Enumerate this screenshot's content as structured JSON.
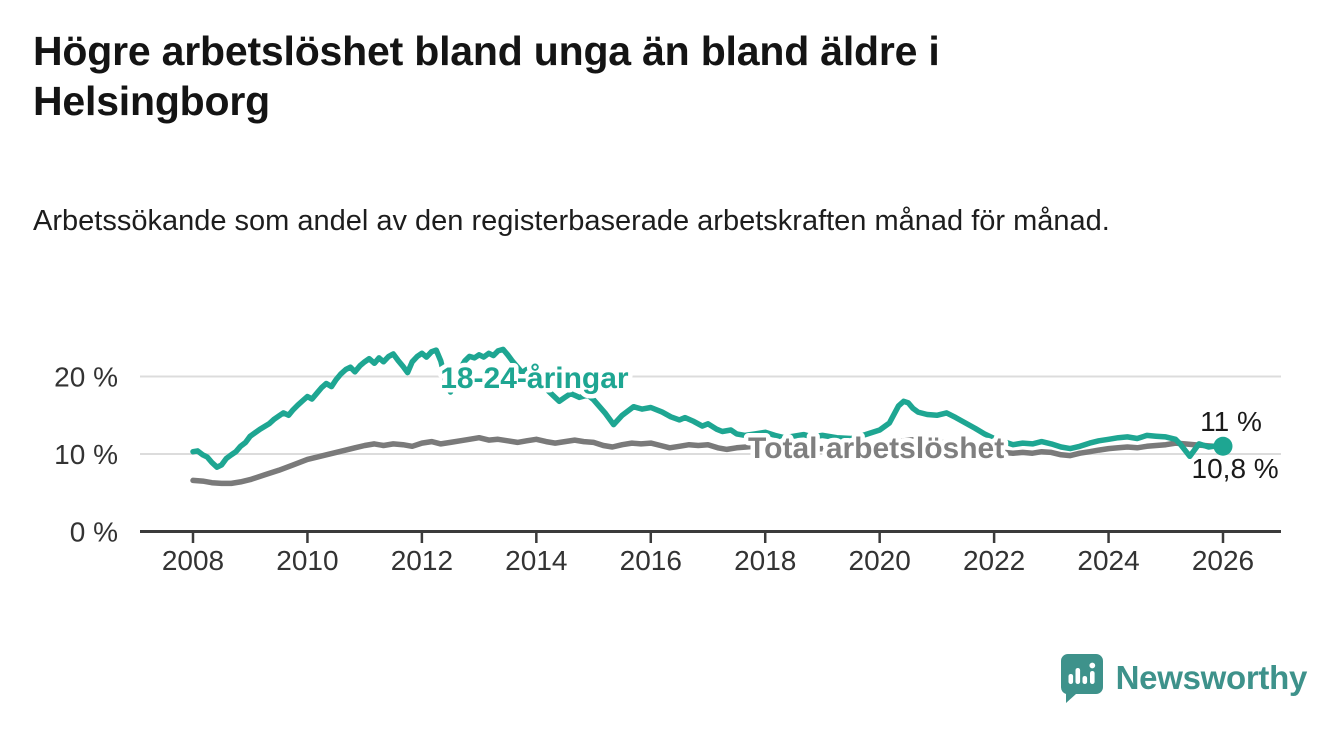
{
  "page": {
    "background": "#ffffff"
  },
  "header": {
    "title": "Högre arbetslöshet bland unga än bland äldre i Helsingborg",
    "subtitle": "Arbetssökande som andel av den registerbaserade arbetskraften månad för månad."
  },
  "branding": {
    "name": "Newsworthy",
    "color": "#3E928B",
    "icon": "newsworthy-speech-bubble-bar-chart-icon"
  },
  "chart_data": {
    "type": "line",
    "title": "Högre arbetslöshet bland unga än bland äldre i Helsingborg",
    "subtitle": "Arbetssökande som andel av den registerbaserade arbetskraften månad för månad.",
    "xlabel": "",
    "ylabel": "",
    "x_axis": {
      "ticks": [
        2008,
        2010,
        2012,
        2014,
        2016,
        2018,
        2020,
        2022,
        2024,
        2026
      ],
      "range": [
        2007.08,
        2027.0
      ],
      "color": "#3b3b3b",
      "label_color": "#333333"
    },
    "y_axis": {
      "ticks": [
        {
          "value": 0,
          "label": "0 %"
        },
        {
          "value": 10,
          "label": "10 %"
        },
        {
          "value": 20,
          "label": "20 %"
        }
      ],
      "range": [
        0,
        24.8
      ],
      "grid": true,
      "grid_color": "#dcdcdc",
      "label_color": "#333333"
    },
    "legend_position": "inline-labels",
    "series": [
      {
        "name": "Total arbetslöshet",
        "color": "#7A7A7A",
        "label_color": "#7F7F7F",
        "label_pos": {
          "year": 2017.7,
          "pct": 9.48
        },
        "end_dot": false,
        "points": [
          [
            2008.0,
            6.6
          ],
          [
            2008.17,
            6.5
          ],
          [
            2008.33,
            6.3
          ],
          [
            2008.5,
            6.2
          ],
          [
            2008.67,
            6.2
          ],
          [
            2008.83,
            6.4
          ],
          [
            2009.0,
            6.7
          ],
          [
            2009.25,
            7.3
          ],
          [
            2009.5,
            7.9
          ],
          [
            2009.75,
            8.6
          ],
          [
            2010.0,
            9.3
          ],
          [
            2010.17,
            9.6
          ],
          [
            2010.33,
            9.9
          ],
          [
            2010.5,
            10.2
          ],
          [
            2010.67,
            10.5
          ],
          [
            2010.83,
            10.8
          ],
          [
            2011.0,
            11.1
          ],
          [
            2011.17,
            11.3
          ],
          [
            2011.33,
            11.1
          ],
          [
            2011.5,
            11.3
          ],
          [
            2011.67,
            11.2
          ],
          [
            2011.83,
            11.0
          ],
          [
            2012.0,
            11.4
          ],
          [
            2012.17,
            11.6
          ],
          [
            2012.33,
            11.3
          ],
          [
            2012.5,
            11.5
          ],
          [
            2012.67,
            11.7
          ],
          [
            2012.83,
            11.9
          ],
          [
            2013.0,
            12.1
          ],
          [
            2013.17,
            11.8
          ],
          [
            2013.33,
            11.9
          ],
          [
            2013.5,
            11.7
          ],
          [
            2013.67,
            11.5
          ],
          [
            2013.83,
            11.7
          ],
          [
            2014.0,
            11.9
          ],
          [
            2014.17,
            11.6
          ],
          [
            2014.33,
            11.4
          ],
          [
            2014.5,
            11.6
          ],
          [
            2014.67,
            11.8
          ],
          [
            2014.83,
            11.6
          ],
          [
            2015.0,
            11.5
          ],
          [
            2015.17,
            11.1
          ],
          [
            2015.33,
            10.9
          ],
          [
            2015.5,
            11.2
          ],
          [
            2015.67,
            11.4
          ],
          [
            2015.83,
            11.3
          ],
          [
            2016.0,
            11.4
          ],
          [
            2016.17,
            11.1
          ],
          [
            2016.33,
            10.8
          ],
          [
            2016.5,
            11.0
          ],
          [
            2016.67,
            11.2
          ],
          [
            2016.83,
            11.1
          ],
          [
            2017.0,
            11.2
          ],
          [
            2017.17,
            10.8
          ],
          [
            2017.33,
            10.6
          ],
          [
            2017.5,
            10.8
          ],
          [
            2017.67,
            10.9
          ],
          [
            2017.83,
            11.0
          ],
          [
            2018.0,
            11.1
          ],
          [
            2018.25,
            10.7
          ],
          [
            2018.5,
            10.5
          ],
          [
            2018.75,
            10.6
          ],
          [
            2019.0,
            10.7
          ],
          [
            2019.25,
            10.4
          ],
          [
            2019.5,
            10.3
          ],
          [
            2019.75,
            10.5
          ],
          [
            2020.0,
            10.8
          ],
          [
            2020.25,
            11.4
          ],
          [
            2020.5,
            11.8
          ],
          [
            2020.75,
            11.9
          ],
          [
            2021.0,
            11.6
          ],
          [
            2021.25,
            11.3
          ],
          [
            2021.5,
            11.0
          ],
          [
            2021.75,
            10.7
          ],
          [
            2022.0,
            10.4
          ],
          [
            2022.17,
            10.2
          ],
          [
            2022.33,
            10.1
          ],
          [
            2022.5,
            10.2
          ],
          [
            2022.67,
            10.1
          ],
          [
            2022.83,
            10.3
          ],
          [
            2023.0,
            10.2
          ],
          [
            2023.17,
            9.9
          ],
          [
            2023.33,
            9.8
          ],
          [
            2023.5,
            10.1
          ],
          [
            2023.67,
            10.3
          ],
          [
            2023.83,
            10.5
          ],
          [
            2024.0,
            10.7
          ],
          [
            2024.17,
            10.8
          ],
          [
            2024.33,
            10.9
          ],
          [
            2024.5,
            10.8
          ],
          [
            2024.67,
            11.0
          ],
          [
            2024.83,
            11.1
          ],
          [
            2025.0,
            11.2
          ],
          [
            2025.17,
            11.4
          ],
          [
            2025.33,
            11.3
          ],
          [
            2025.5,
            11.2
          ],
          [
            2025.67,
            11.1
          ],
          [
            2025.83,
            11.0
          ],
          [
            2026.0,
            10.8
          ]
        ]
      },
      {
        "name": "18-24-åringar",
        "color": "#1EA692",
        "label_color": "#1EA692",
        "label_pos": {
          "year": 2012.32,
          "pct": 18.5
        },
        "end_dot": true,
        "points": [
          [
            2008.0,
            10.3
          ],
          [
            2008.08,
            10.4
          ],
          [
            2008.17,
            9.9
          ],
          [
            2008.25,
            9.6
          ],
          [
            2008.33,
            8.9
          ],
          [
            2008.42,
            8.3
          ],
          [
            2008.5,
            8.6
          ],
          [
            2008.58,
            9.4
          ],
          [
            2008.67,
            9.9
          ],
          [
            2008.75,
            10.3
          ],
          [
            2008.83,
            11.0
          ],
          [
            2008.92,
            11.5
          ],
          [
            2009.0,
            12.3
          ],
          [
            2009.17,
            13.2
          ],
          [
            2009.33,
            13.9
          ],
          [
            2009.42,
            14.5
          ],
          [
            2009.5,
            14.9
          ],
          [
            2009.58,
            15.3
          ],
          [
            2009.67,
            15.0
          ],
          [
            2009.75,
            15.7
          ],
          [
            2009.83,
            16.3
          ],
          [
            2009.92,
            16.9
          ],
          [
            2010.0,
            17.4
          ],
          [
            2010.08,
            17.1
          ],
          [
            2010.17,
            17.9
          ],
          [
            2010.25,
            18.6
          ],
          [
            2010.33,
            19.1
          ],
          [
            2010.42,
            18.7
          ],
          [
            2010.5,
            19.6
          ],
          [
            2010.58,
            20.3
          ],
          [
            2010.67,
            20.9
          ],
          [
            2010.75,
            21.2
          ],
          [
            2010.83,
            20.6
          ],
          [
            2010.92,
            21.4
          ],
          [
            2011.0,
            21.9
          ],
          [
            2011.08,
            22.3
          ],
          [
            2011.17,
            21.7
          ],
          [
            2011.25,
            22.4
          ],
          [
            2011.33,
            21.9
          ],
          [
            2011.42,
            22.6
          ],
          [
            2011.5,
            22.9
          ],
          [
            2011.58,
            22.1
          ],
          [
            2011.67,
            21.3
          ],
          [
            2011.75,
            20.5
          ],
          [
            2011.83,
            21.9
          ],
          [
            2011.92,
            22.6
          ],
          [
            2012.0,
            23.0
          ],
          [
            2012.08,
            22.5
          ],
          [
            2012.17,
            23.2
          ],
          [
            2012.25,
            23.4
          ],
          [
            2012.33,
            22.0
          ],
          [
            2012.42,
            19.3
          ],
          [
            2012.5,
            18.0
          ],
          [
            2012.58,
            19.5
          ],
          [
            2012.67,
            21.0
          ],
          [
            2012.75,
            22.0
          ],
          [
            2012.83,
            22.6
          ],
          [
            2012.92,
            22.4
          ],
          [
            2013.0,
            22.8
          ],
          [
            2013.08,
            22.5
          ],
          [
            2013.17,
            23.0
          ],
          [
            2013.25,
            22.7
          ],
          [
            2013.33,
            23.3
          ],
          [
            2013.42,
            23.5
          ],
          [
            2013.5,
            22.8
          ],
          [
            2013.58,
            22.0
          ],
          [
            2013.67,
            21.2
          ],
          [
            2013.75,
            20.5
          ],
          [
            2013.83,
            20.9
          ],
          [
            2013.92,
            20.0
          ],
          [
            2014.1,
            18.9
          ],
          [
            2014.3,
            17.5
          ],
          [
            2014.4,
            16.8
          ],
          [
            2014.5,
            17.3
          ],
          [
            2014.6,
            17.8
          ],
          [
            2014.75,
            17.3
          ],
          [
            2014.9,
            17.6
          ],
          [
            2015.0,
            17.0
          ],
          [
            2015.2,
            15.3
          ],
          [
            2015.35,
            13.8
          ],
          [
            2015.5,
            15.0
          ],
          [
            2015.7,
            16.1
          ],
          [
            2015.85,
            15.8
          ],
          [
            2016.0,
            16.0
          ],
          [
            2016.2,
            15.4
          ],
          [
            2016.35,
            14.8
          ],
          [
            2016.5,
            14.4
          ],
          [
            2016.6,
            14.7
          ],
          [
            2016.75,
            14.2
          ],
          [
            2016.9,
            13.6
          ],
          [
            2017.0,
            13.9
          ],
          [
            2017.15,
            13.2
          ],
          [
            2017.25,
            12.9
          ],
          [
            2017.4,
            13.1
          ],
          [
            2017.5,
            12.6
          ],
          [
            2017.65,
            12.4
          ],
          [
            2017.83,
            12.6
          ],
          [
            2018.0,
            12.8
          ],
          [
            2018.17,
            12.4
          ],
          [
            2018.33,
            12.1
          ],
          [
            2018.5,
            12.3
          ],
          [
            2018.67,
            12.5
          ],
          [
            2018.83,
            12.2
          ],
          [
            2019.0,
            12.4
          ],
          [
            2019.25,
            12.1
          ],
          [
            2019.5,
            12.0
          ],
          [
            2019.75,
            12.5
          ],
          [
            2020.0,
            13.1
          ],
          [
            2020.17,
            14.0
          ],
          [
            2020.33,
            16.2
          ],
          [
            2020.42,
            16.8
          ],
          [
            2020.5,
            16.6
          ],
          [
            2020.58,
            15.9
          ],
          [
            2020.67,
            15.4
          ],
          [
            2020.83,
            15.1
          ],
          [
            2021.0,
            15.0
          ],
          [
            2021.17,
            15.3
          ],
          [
            2021.33,
            14.7
          ],
          [
            2021.5,
            14.0
          ],
          [
            2021.67,
            13.3
          ],
          [
            2021.83,
            12.6
          ],
          [
            2022.0,
            12.0
          ],
          [
            2022.17,
            11.6
          ],
          [
            2022.33,
            11.2
          ],
          [
            2022.5,
            11.4
          ],
          [
            2022.67,
            11.3
          ],
          [
            2022.83,
            11.6
          ],
          [
            2023.0,
            11.3
          ],
          [
            2023.17,
            10.9
          ],
          [
            2023.33,
            10.7
          ],
          [
            2023.5,
            11.0
          ],
          [
            2023.67,
            11.4
          ],
          [
            2023.83,
            11.7
          ],
          [
            2024.0,
            11.9
          ],
          [
            2024.17,
            12.1
          ],
          [
            2024.33,
            12.2
          ],
          [
            2024.5,
            12.0
          ],
          [
            2024.67,
            12.4
          ],
          [
            2024.83,
            12.3
          ],
          [
            2025.0,
            12.2
          ],
          [
            2025.17,
            11.9
          ],
          [
            2025.25,
            11.3
          ],
          [
            2025.42,
            9.7
          ],
          [
            2025.58,
            11.3
          ],
          [
            2025.75,
            10.9
          ],
          [
            2025.92,
            11.1
          ],
          [
            2026.0,
            11.0
          ]
        ]
      }
    ],
    "annotations": [
      {
        "text": "11 %",
        "year": 2025.6,
        "pct": 12.97
      },
      {
        "text": "10,8 %",
        "year": 2025.45,
        "pct": 6.9
      }
    ]
  }
}
